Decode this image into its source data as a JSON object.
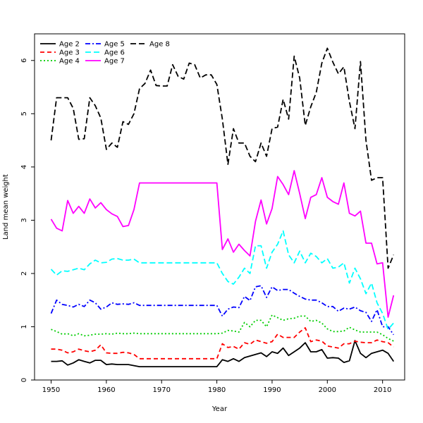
{
  "chart_data": {
    "type": "line",
    "xlabel": "Year",
    "ylabel": "Land mean weight",
    "xlim": [
      1947,
      2014
    ],
    "ylim": [
      0,
      6.5
    ],
    "xticks": [
      1950,
      1960,
      1970,
      1980,
      1990,
      2000,
      2010
    ],
    "yticks": [
      0,
      1,
      2,
      3,
      4,
      5,
      6
    ],
    "grid": false,
    "legend_position": "top-left",
    "years": [
      1950,
      1951,
      1952,
      1953,
      1954,
      1955,
      1956,
      1957,
      1958,
      1959,
      1960,
      1961,
      1962,
      1963,
      1964,
      1965,
      1966,
      1967,
      1968,
      1969,
      1970,
      1971,
      1972,
      1973,
      1974,
      1975,
      1976,
      1977,
      1978,
      1979,
      1980,
      1981,
      1982,
      1983,
      1984,
      1985,
      1986,
      1987,
      1988,
      1989,
      1990,
      1991,
      1992,
      1993,
      1994,
      1995,
      1996,
      1997,
      1998,
      1999,
      2000,
      2001,
      2002,
      2003,
      2004,
      2005,
      2006,
      2007,
      2008,
      2009,
      2010,
      2011,
      2012
    ],
    "series": [
      {
        "name": "Age 2",
        "color": "#000000",
        "dash": "solid",
        "values": [
          0.35,
          0.35,
          0.36,
          0.28,
          0.32,
          0.38,
          0.35,
          0.32,
          0.37,
          0.37,
          0.29,
          0.3,
          0.29,
          0.29,
          0.29,
          0.27,
          0.25,
          0.25,
          0.25,
          0.25,
          0.25,
          0.25,
          0.25,
          0.25,
          0.25,
          0.25,
          0.25,
          0.25,
          0.25,
          0.25,
          0.25,
          0.38,
          0.35,
          0.4,
          0.35,
          0.42,
          0.45,
          0.48,
          0.51,
          0.44,
          0.53,
          0.5,
          0.6,
          0.46,
          0.53,
          0.6,
          0.7,
          0.53,
          0.53,
          0.57,
          0.41,
          0.42,
          0.41,
          0.33,
          0.36,
          0.74,
          0.5,
          0.42,
          0.5,
          0.53,
          0.56,
          0.5,
          0.35
        ]
      },
      {
        "name": "Age 3",
        "color": "#ff0000",
        "dash": "dashed",
        "values": [
          0.58,
          0.58,
          0.56,
          0.51,
          0.53,
          0.58,
          0.55,
          0.53,
          0.56,
          0.66,
          0.51,
          0.5,
          0.5,
          0.52,
          0.51,
          0.48,
          0.4,
          0.4,
          0.4,
          0.4,
          0.4,
          0.4,
          0.4,
          0.4,
          0.4,
          0.4,
          0.4,
          0.4,
          0.4,
          0.4,
          0.4,
          0.68,
          0.61,
          0.63,
          0.58,
          0.7,
          0.67,
          0.75,
          0.72,
          0.69,
          0.72,
          0.86,
          0.8,
          0.8,
          0.8,
          0.9,
          0.98,
          0.72,
          0.75,
          0.73,
          0.64,
          0.62,
          0.6,
          0.68,
          0.68,
          0.73,
          0.71,
          0.7,
          0.7,
          0.75,
          0.72,
          0.7,
          0.62
        ]
      },
      {
        "name": "Age 4",
        "color": "#00cd00",
        "dash": "dotted",
        "values": [
          0.95,
          0.91,
          0.86,
          0.87,
          0.83,
          0.87,
          0.83,
          0.84,
          0.86,
          0.86,
          0.87,
          0.86,
          0.88,
          0.87,
          0.87,
          0.88,
          0.87,
          0.87,
          0.87,
          0.87,
          0.87,
          0.87,
          0.87,
          0.87,
          0.87,
          0.87,
          0.87,
          0.87,
          0.87,
          0.87,
          0.87,
          0.88,
          0.93,
          0.92,
          0.9,
          1.08,
          1.0,
          1.12,
          1.12,
          1.0,
          1.22,
          1.17,
          1.12,
          1.15,
          1.16,
          1.2,
          1.2,
          1.1,
          1.12,
          1.07,
          0.96,
          0.91,
          0.91,
          0.92,
          0.99,
          0.94,
          0.9,
          0.9,
          0.9,
          0.9,
          0.85,
          0.78,
          0.73
        ]
      },
      {
        "name": "Age 5",
        "color": "#0000ff",
        "dash": "dashdot",
        "values": [
          1.25,
          1.5,
          1.42,
          1.4,
          1.37,
          1.42,
          1.38,
          1.5,
          1.45,
          1.33,
          1.37,
          1.45,
          1.42,
          1.43,
          1.42,
          1.45,
          1.4,
          1.4,
          1.4,
          1.4,
          1.4,
          1.4,
          1.4,
          1.4,
          1.4,
          1.4,
          1.4,
          1.4,
          1.4,
          1.4,
          1.4,
          1.2,
          1.33,
          1.37,
          1.36,
          1.57,
          1.49,
          1.75,
          1.77,
          1.55,
          1.75,
          1.68,
          1.7,
          1.7,
          1.63,
          1.57,
          1.52,
          1.5,
          1.5,
          1.45,
          1.38,
          1.38,
          1.29,
          1.35,
          1.33,
          1.37,
          1.3,
          1.27,
          1.1,
          1.32,
          1.0,
          1.0,
          0.85
        ]
      },
      {
        "name": "Age 6",
        "color": "#00ffff",
        "dash": "longdash",
        "values": [
          2.08,
          1.97,
          2.05,
          2.04,
          2.07,
          2.1,
          2.07,
          2.18,
          2.25,
          2.2,
          2.21,
          2.27,
          2.28,
          2.25,
          2.25,
          2.27,
          2.2,
          2.2,
          2.2,
          2.2,
          2.2,
          2.2,
          2.2,
          2.2,
          2.2,
          2.2,
          2.2,
          2.2,
          2.2,
          2.2,
          2.2,
          2.0,
          1.85,
          1.8,
          1.93,
          2.1,
          2.0,
          2.52,
          2.52,
          2.1,
          2.4,
          2.55,
          2.8,
          2.35,
          2.2,
          2.42,
          2.2,
          2.38,
          2.32,
          2.2,
          2.28,
          2.1,
          2.12,
          2.2,
          1.82,
          2.1,
          1.9,
          1.62,
          1.82,
          1.45,
          1.25,
          0.95,
          1.07
        ]
      },
      {
        "name": "Age 7",
        "color": "#ff00ff",
        "dash": "solid",
        "values": [
          3.02,
          2.85,
          2.8,
          3.37,
          3.13,
          3.26,
          3.13,
          3.4,
          3.23,
          3.33,
          3.2,
          3.12,
          3.07,
          2.88,
          2.9,
          3.2,
          3.7,
          3.7,
          3.7,
          3.7,
          3.7,
          3.7,
          3.7,
          3.7,
          3.7,
          3.7,
          3.7,
          3.7,
          3.7,
          3.7,
          3.7,
          2.45,
          2.65,
          2.4,
          2.55,
          2.43,
          2.33,
          2.98,
          3.38,
          2.93,
          3.22,
          3.82,
          3.67,
          3.48,
          3.93,
          3.5,
          3.03,
          3.43,
          3.48,
          3.8,
          3.43,
          3.35,
          3.3,
          3.7,
          3.13,
          3.08,
          3.17,
          2.57,
          2.57,
          2.18,
          2.2,
          1.18,
          1.59
        ]
      },
      {
        "name": "Age 8",
        "color": "#000000",
        "dash": "longdash",
        "values": [
          4.5,
          5.3,
          5.3,
          5.3,
          5.1,
          4.52,
          4.53,
          5.3,
          5.15,
          4.92,
          4.33,
          4.45,
          4.37,
          4.85,
          4.8,
          5.0,
          5.47,
          5.57,
          5.82,
          5.53,
          5.52,
          5.52,
          5.92,
          5.7,
          5.65,
          5.95,
          5.92,
          5.67,
          5.73,
          5.73,
          5.55,
          4.9,
          4.05,
          4.72,
          4.45,
          4.45,
          4.2,
          4.1,
          4.45,
          4.2,
          4.72,
          4.75,
          5.27,
          4.9,
          6.08,
          5.67,
          4.78,
          5.13,
          5.4,
          5.95,
          6.23,
          5.97,
          5.75,
          5.88,
          5.23,
          4.72,
          5.98,
          4.5,
          3.75,
          3.8,
          3.8,
          2.1,
          2.35
        ]
      }
    ]
  }
}
